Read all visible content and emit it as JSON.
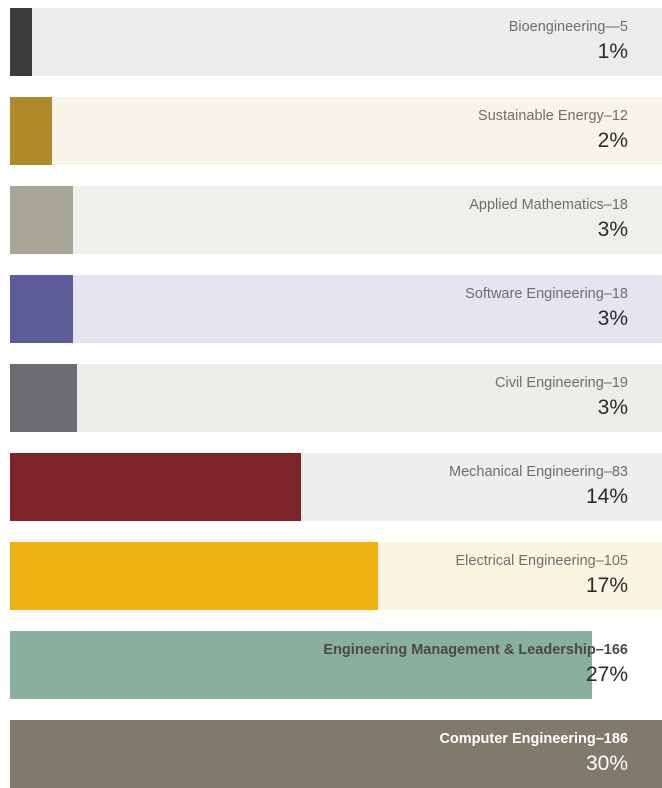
{
  "chart_data": {
    "type": "bar",
    "orientation": "horizontal",
    "categories": [
      "Bioengineering",
      "Sustainable Energy",
      "Applied Mathematics",
      "Software Engineering",
      "Civil Engineering",
      "Mechanical Engineering",
      "Electrical Engineering",
      "Engineering Management & Leadership",
      "Computer Engineering"
    ],
    "values": [
      5,
      12,
      18,
      18,
      19,
      83,
      105,
      166,
      186
    ],
    "percent_labels": [
      "1%",
      "2%",
      "3%",
      "3%",
      "3%",
      "14%",
      "17%",
      "27%",
      "30%"
    ],
    "labels": [
      "Bioengineering—5",
      "Sustainable Energy–12",
      "Applied Mathematics–18",
      "Software Engineering–18",
      "Civil Engineering–19",
      "Mechanical Engineering–83",
      "Electrical Engineering–105",
      "Engineering Management & Leadership–166",
      "Computer Engineering–186"
    ],
    "xlim": [
      0,
      186
    ],
    "colors": [
      "#3b3b3b",
      "#b08a2a",
      "#a8a798",
      "#5d5b9a",
      "#6b6c6f",
      "#7d232a",
      "#eeb114",
      "#8aaf9f",
      "#7f7a6b"
    ],
    "track_colors": [
      "#ecedef",
      "#f8f4ea",
      "#eff0ea",
      "#e6e4f1",
      "#eceee9",
      "#efedef",
      "#fdf3e3",
      "#ffffff",
      "#ffffff"
    ],
    "bold_labels": [
      false,
      false,
      false,
      false,
      false,
      false,
      false,
      true,
      true
    ],
    "grid": false,
    "legend": "none"
  }
}
